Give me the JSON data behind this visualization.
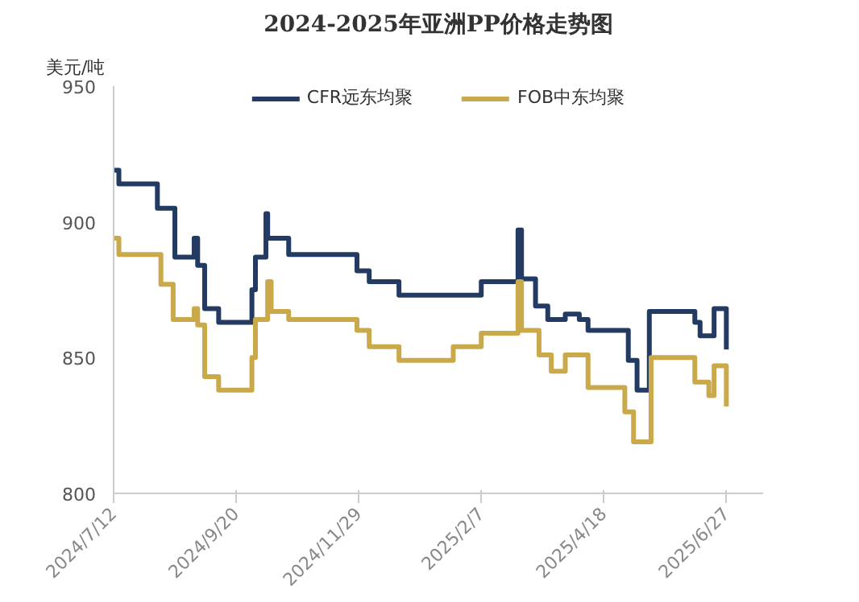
{
  "chart_data": {
    "type": "step",
    "title": "2024-2025年亚洲PP价格走势图",
    "ylabel": "美元/吨",
    "xlim": [
      "2024-07-12",
      "2025-07-18"
    ],
    "xticks": [
      {
        "value": "2024-07-12",
        "label": "2024/7/12"
      },
      {
        "value": "2024-09-20",
        "label": "2024/9/20"
      },
      {
        "value": "2024-11-29",
        "label": "2024/11/29"
      },
      {
        "value": "2025-02-07",
        "label": "2025/2/7"
      },
      {
        "value": "2025-04-18",
        "label": "2025/4/18"
      },
      {
        "value": "2025-06-27",
        "label": "2025/6/27"
      }
    ],
    "ylim": [
      800,
      950
    ],
    "yticks": [
      800,
      850,
      900,
      950
    ],
    "grid": false,
    "legend": "top",
    "line_style": "solid",
    "marker": "none",
    "series": [
      {
        "name": "CFR远东均聚",
        "color": "#233a63",
        "x": [
          "2024-07-12",
          "2024-07-15",
          "2024-08-06",
          "2024-08-16",
          "2024-08-27",
          "2024-08-29",
          "2024-09-02",
          "2024-09-10",
          "2024-09-29",
          "2024-10-01",
          "2024-10-07",
          "2024-10-08",
          "2024-10-20",
          "2024-11-28",
          "2024-12-05",
          "2024-12-22",
          "2025-02-07",
          "2025-02-28",
          "2025-03-02",
          "2025-03-10",
          "2025-03-17",
          "2025-03-27",
          "2025-04-04",
          "2025-04-09",
          "2025-05-02",
          "2025-05-07",
          "2025-05-14",
          "2025-06-09",
          "2025-06-12",
          "2025-06-20",
          "2025-06-27"
        ],
        "values": [
          919,
          914,
          905,
          887,
          894,
          884,
          868,
          863,
          875,
          887,
          903,
          894,
          888,
          882,
          878,
          873,
          878,
          897,
          879,
          869,
          864,
          866,
          864,
          860,
          849,
          838,
          867,
          863,
          858,
          868,
          853
        ]
      },
      {
        "name": "FOB中东均聚",
        "color": "#c9a94a",
        "x": [
          "2024-07-12",
          "2024-07-15",
          "2024-08-08",
          "2024-08-15",
          "2024-08-27",
          "2024-08-29",
          "2024-09-02",
          "2024-09-10",
          "2024-09-29",
          "2024-10-01",
          "2024-10-08",
          "2024-10-10",
          "2024-10-20",
          "2024-11-28",
          "2024-12-05",
          "2024-12-22",
          "2025-01-22",
          "2025-02-07",
          "2025-02-28",
          "2025-03-02",
          "2025-03-12",
          "2025-03-19",
          "2025-03-27",
          "2025-04-09",
          "2025-04-30",
          "2025-05-05",
          "2025-05-15",
          "2025-06-09",
          "2025-06-17",
          "2025-06-20",
          "2025-06-27"
        ],
        "values": [
          894,
          888,
          877,
          864,
          868,
          862,
          843,
          838,
          850,
          864,
          878,
          867,
          864,
          860,
          854,
          849,
          854,
          859,
          878,
          860,
          851,
          845,
          851,
          839,
          830,
          819,
          850,
          841,
          836,
          847,
          832
        ]
      }
    ]
  }
}
